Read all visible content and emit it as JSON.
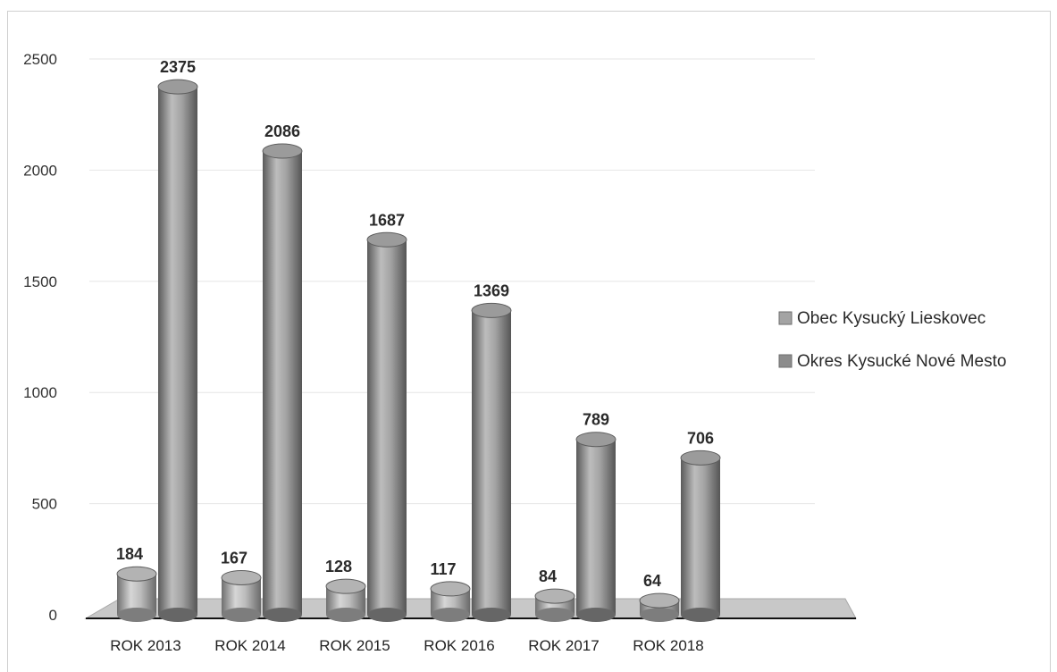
{
  "chart_data": {
    "type": "bar",
    "categories": [
      "ROK 2013",
      "ROK 2014",
      "ROK 2015",
      "ROK 2016",
      "ROK 2017",
      "ROK 2018"
    ],
    "series": [
      {
        "name": "Obec Kysucký Lieskovec",
        "values": [
          184,
          167,
          128,
          117,
          84,
          64
        ],
        "color": "#a4a4a4"
      },
      {
        "name": "Okres Kysucké Nové Mesto",
        "values": [
          2375,
          2086,
          1687,
          1369,
          789,
          706
        ],
        "color": "#8c8c8c"
      }
    ],
    "y_ticks": [
      "0",
      "500",
      "1000",
      "1500",
      "2000",
      "2500"
    ],
    "ylim": [
      0,
      2500
    ],
    "grid": true,
    "legend_position": "right",
    "style": "3d-cylinder",
    "floor_color": "#c8c8c8"
  }
}
